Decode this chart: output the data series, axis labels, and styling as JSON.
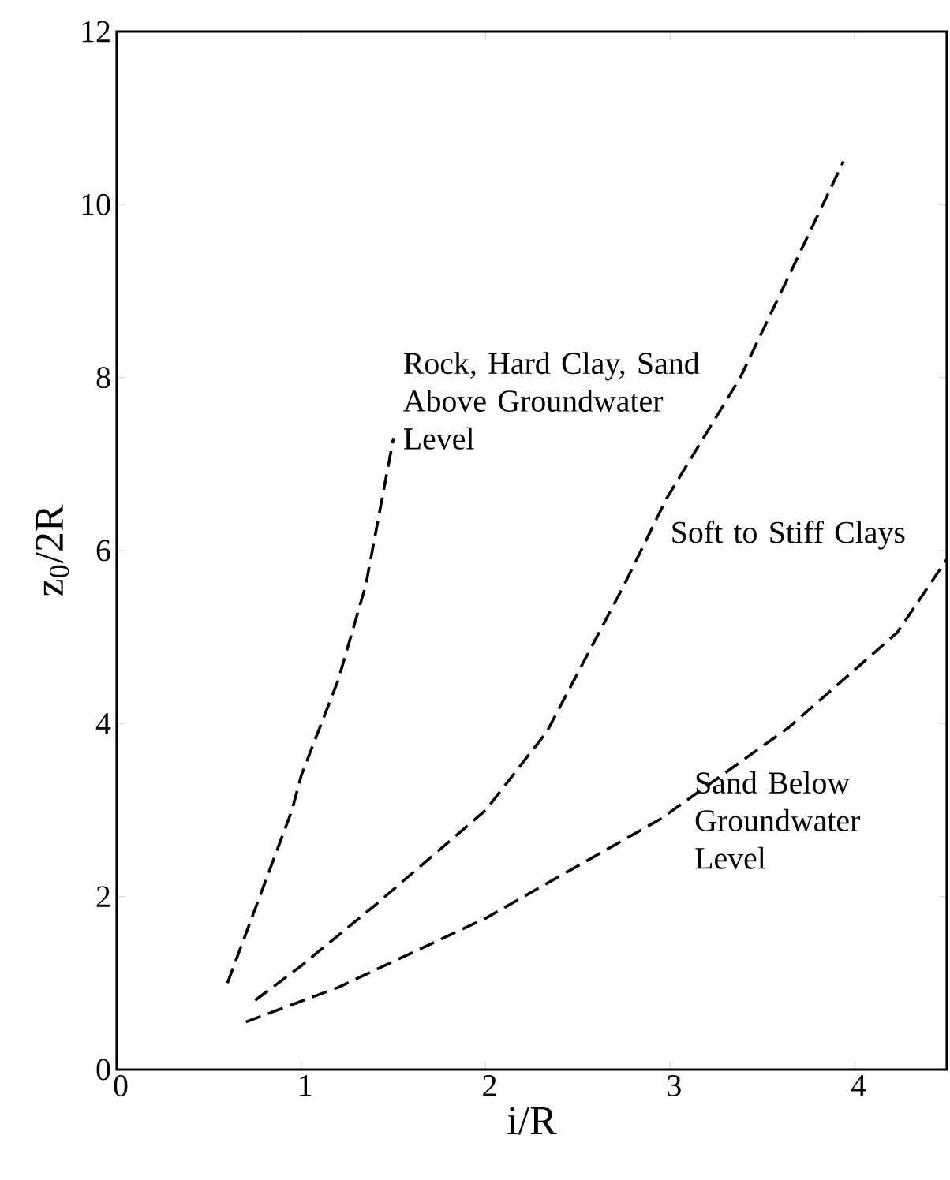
{
  "chart_data": {
    "type": "line",
    "xlabel": "i/R",
    "ylabel": "z$_{0}$/2R",
    "xlim": [
      0,
      4.5
    ],
    "ylim": [
      0,
      12
    ],
    "xticks": [
      0,
      1,
      2,
      3,
      4
    ],
    "yticks": [
      0,
      2,
      4,
      6,
      8,
      10,
      12
    ],
    "grid": false,
    "legend": false,
    "marker": "none",
    "line_style": "dashed",
    "series": [
      {
        "name": "Rock, Hard Clay, Sand Above Groundwater Level",
        "color": "#000000",
        "x": [
          0.6,
          0.95,
          1.0,
          1.2,
          1.35,
          1.5
        ],
        "values": [
          1.0,
          3.0,
          3.4,
          4.5,
          5.6,
          7.3
        ]
      },
      {
        "name": "Soft to Stiff Clays",
        "color": "#000000",
        "x": [
          0.75,
          1.0,
          1.4,
          2.0,
          2.33,
          2.75,
          2.98,
          3.38,
          3.94
        ],
        "values": [
          0.8,
          1.2,
          1.9,
          3.0,
          3.9,
          5.6,
          6.6,
          8.0,
          10.5
        ]
      },
      {
        "name": "Sand Below Groundwater Level",
        "color": "#000000",
        "x": [
          0.7,
          1.2,
          2.0,
          2.95,
          3.64,
          4.23,
          4.5
        ],
        "values": [
          0.55,
          0.95,
          1.75,
          2.9,
          3.95,
          5.05,
          5.9
        ]
      }
    ]
  }
}
